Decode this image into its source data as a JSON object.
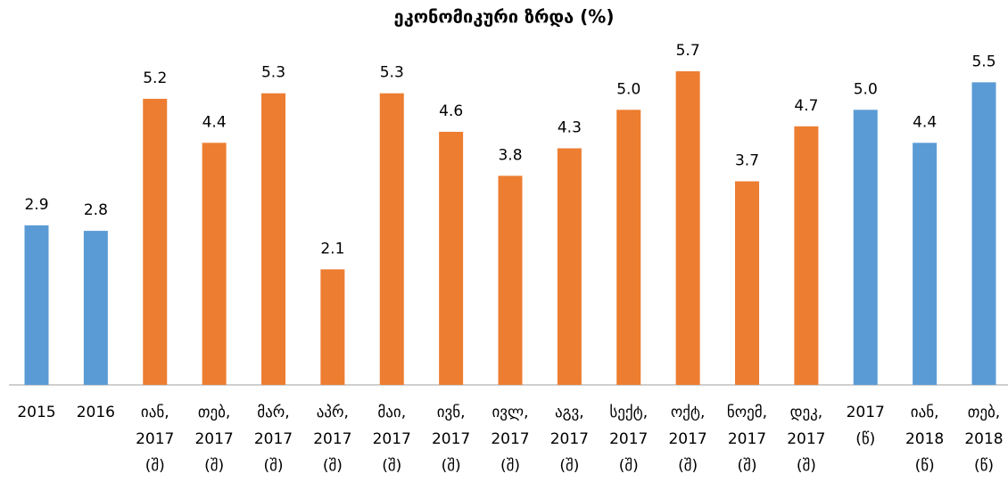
{
  "chart_data": {
    "type": "bar",
    "title": "ეკონომიკური ზრდა (%)",
    "categories": [
      [
        "2015"
      ],
      [
        "2016"
      ],
      [
        "იან,",
        "2017",
        "(შ)"
      ],
      [
        "თებ,",
        "2017",
        "(შ)"
      ],
      [
        "მარ,",
        "2017",
        "(შ)"
      ],
      [
        "აპრ,",
        "2017",
        "(შ)"
      ],
      [
        "მაი,",
        "2017",
        "(შ)"
      ],
      [
        "ივნ,",
        "2017",
        "(შ)"
      ],
      [
        "ივლ,",
        "2017",
        "(შ)"
      ],
      [
        "აგვ,",
        "2017",
        "(შ)"
      ],
      [
        "სექტ,",
        "2017",
        "(შ)"
      ],
      [
        "ოქტ,",
        "2017",
        "(შ)"
      ],
      [
        "ნოემ,",
        "2017",
        "(შ)"
      ],
      [
        "დეკ,",
        "2017",
        "(შ)"
      ],
      [
        "2017",
        "(წ)"
      ],
      [
        "იან,",
        "2018",
        "(წ)"
      ],
      [
        "თებ,",
        "2018",
        "(წ)"
      ]
    ],
    "values": [
      2.9,
      2.8,
      5.2,
      4.4,
      5.3,
      2.1,
      5.3,
      4.6,
      3.8,
      4.3,
      5.0,
      5.7,
      3.7,
      4.7,
      5.0,
      4.4,
      5.5
    ],
    "value_labels": [
      "2.9",
      "2.8",
      "5.2",
      "4.4",
      "5.3",
      "2.1",
      "5.3",
      "4.6",
      "3.8",
      "4.3",
      "5.0",
      "5.7",
      "3.7",
      "4.7",
      "5.0",
      "4.4",
      "5.5"
    ],
    "colors": [
      "#5b9bd5",
      "#5b9bd5",
      "#ed7d31",
      "#ed7d31",
      "#ed7d31",
      "#ed7d31",
      "#ed7d31",
      "#ed7d31",
      "#ed7d31",
      "#ed7d31",
      "#ed7d31",
      "#ed7d31",
      "#ed7d31",
      "#ed7d31",
      "#5b9bd5",
      "#5b9bd5",
      "#5b9bd5"
    ],
    "ylim": [
      0,
      6
    ]
  }
}
